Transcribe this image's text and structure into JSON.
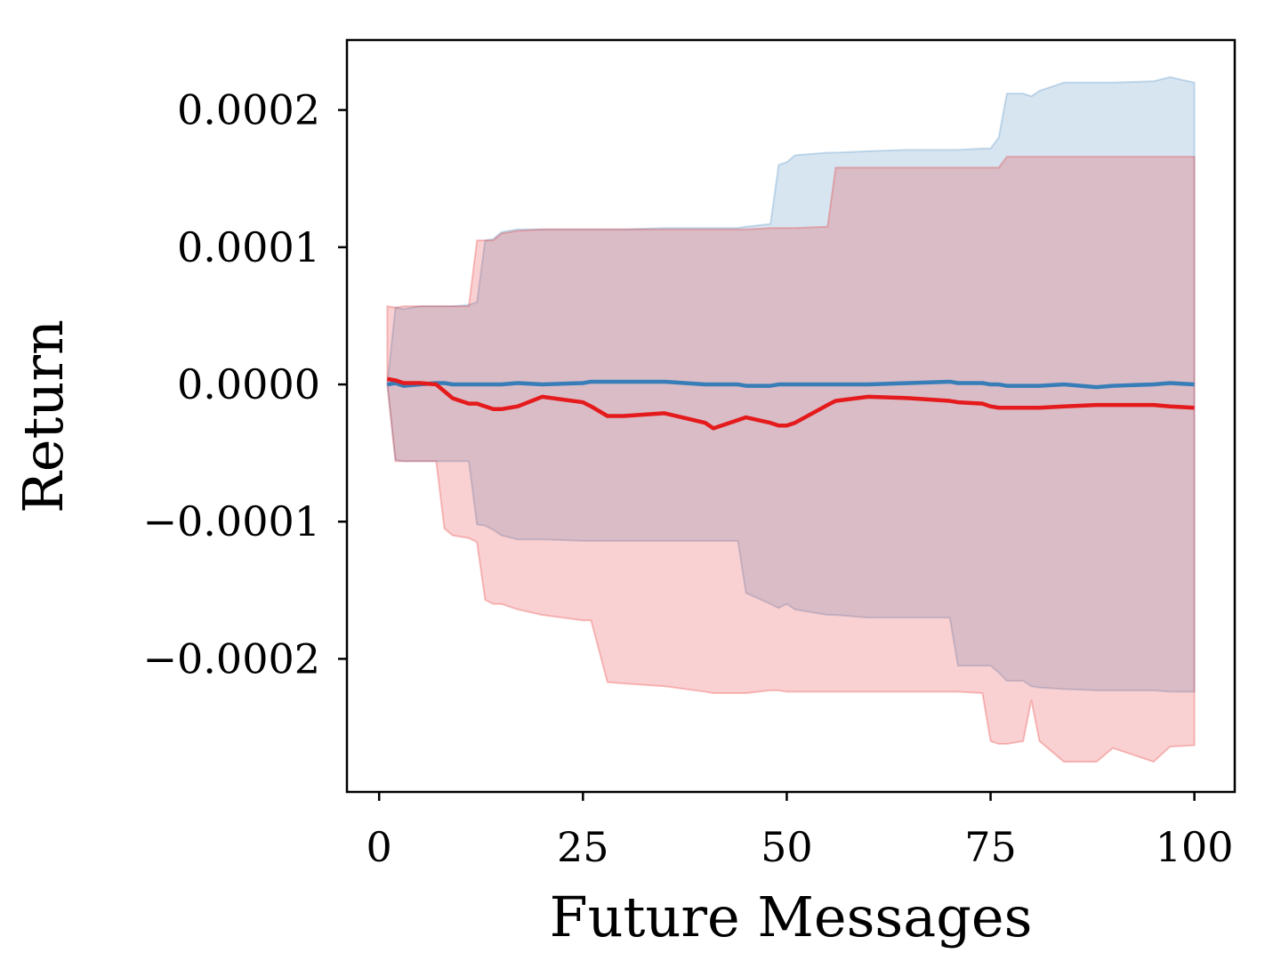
{
  "chart_data": {
    "type": "line",
    "xlabel": "Future Messages",
    "ylabel": "Return",
    "x": [
      1,
      2,
      3,
      5,
      7,
      8,
      9,
      11,
      12,
      13,
      14,
      15,
      17,
      20,
      25,
      26,
      28,
      30,
      35,
      40,
      41,
      44,
      45,
      48,
      49,
      50,
      51,
      55,
      56,
      60,
      65,
      70,
      71,
      74,
      75,
      76,
      77,
      79,
      80,
      81,
      84,
      88,
      90,
      95,
      97,
      100
    ],
    "xlim": [
      -3.95,
      104.95
    ],
    "xticks": [
      0,
      25,
      50,
      75,
      100
    ],
    "ylim": [
      -0.000297,
      0.000251
    ],
    "yticks": [
      {
        "value": -0.0002,
        "label": "−0.0002"
      },
      {
        "value": -0.0001,
        "label": "−0.0001"
      },
      {
        "value": 0,
        "label": "0.0000"
      },
      0.0001,
      0.0002
    ],
    "series": [
      {
        "color": "#377eb8",
        "values": [
          0,
          1e-06,
          -1e-06,
          0,
          1e-06,
          1e-06,
          0,
          0,
          0,
          0,
          0,
          0,
          1e-06,
          0,
          1e-06,
          2e-06,
          2e-06,
          2e-06,
          2e-06,
          0,
          0,
          0,
          -1e-06,
          -1e-06,
          0,
          0,
          0,
          0,
          0,
          0,
          1e-06,
          2e-06,
          1e-06,
          1e-06,
          0,
          0,
          -1e-06,
          -1e-06,
          -1e-06,
          -1e-06,
          0,
          -2e-06,
          -1e-06,
          0,
          1e-06,
          0
        ],
        "lower": [
          0,
          -5.5e-05,
          -5.6e-05,
          -5.6e-05,
          -5.6e-05,
          -5.6e-05,
          -5.6e-05,
          -5.6e-05,
          -0.000102,
          -0.000103,
          -0.000106,
          -0.00011,
          -0.000113,
          -0.000113,
          -0.000114,
          -0.000114,
          -0.000114,
          -0.000114,
          -0.000114,
          -0.000114,
          -0.000114,
          -0.000114,
          -0.000152,
          -0.00016,
          -0.000163,
          -0.00016,
          -0.000164,
          -0.000168,
          -0.000168,
          -0.00017,
          -0.00017,
          -0.00017,
          -0.000205,
          -0.000205,
          -0.000205,
          -0.00021,
          -0.000216,
          -0.000216,
          -0.00022,
          -0.000221,
          -0.000222,
          -0.000223,
          -0.000223,
          -0.000223,
          -0.000224,
          -0.000224
        ],
        "upper": [
          0,
          5.6e-05,
          5.5e-05,
          5.7e-05,
          5.7e-05,
          5.7e-05,
          5.7e-05,
          5.8e-05,
          6e-05,
          0.000105,
          0.000106,
          0.000111,
          0.000113,
          0.000113,
          0.000113,
          0.000113,
          0.000113,
          0.000113,
          0.000114,
          0.000114,
          0.000114,
          0.000114,
          0.000115,
          0.000117,
          0.00016,
          0.000162,
          0.000167,
          0.000169,
          0.000169,
          0.00017,
          0.000171,
          0.000171,
          0.000171,
          0.000172,
          0.000172,
          0.00018,
          0.000212,
          0.000212,
          0.00021,
          0.000214,
          0.00022,
          0.00022,
          0.00022,
          0.000221,
          0.000224,
          0.00022
        ]
      },
      {
        "color": "#e41a1c",
        "values": [
          4e-06,
          3e-06,
          1e-06,
          1e-06,
          0,
          -5e-06,
          -1e-05,
          -1.4e-05,
          -1.4e-05,
          -1.6e-05,
          -1.8e-05,
          -1.8e-05,
          -1.6e-05,
          -9e-06,
          -1.3e-05,
          -1.6e-05,
          -2.3e-05,
          -2.3e-05,
          -2.1e-05,
          -2.8e-05,
          -3.2e-05,
          -2.6e-05,
          -2.4e-05,
          -2.8e-05,
          -3e-05,
          -3e-05,
          -2.8e-05,
          -1.5e-05,
          -1.2e-05,
          -9e-06,
          -1e-05,
          -1.2e-05,
          -1.3e-05,
          -1.4e-05,
          -1.6e-05,
          -1.7e-05,
          -1.7e-05,
          -1.7e-05,
          -1.7e-05,
          -1.7e-05,
          -1.6e-05,
          -1.5e-05,
          -1.5e-05,
          -1.5e-05,
          -1.6e-05,
          -1.7e-05
        ],
        "lower": [
          0,
          -5.6e-05,
          -5.6e-05,
          -5.6e-05,
          -5.6e-05,
          -0.000105,
          -0.00011,
          -0.000112,
          -0.000115,
          -0.000157,
          -0.00016,
          -0.00016,
          -0.000164,
          -0.000168,
          -0.000172,
          -0.000172,
          -0.000217,
          -0.000218,
          -0.00022,
          -0.000224,
          -0.000225,
          -0.000225,
          -0.000225,
          -0.000223,
          -0.000223,
          -0.000224,
          -0.000224,
          -0.000224,
          -0.000224,
          -0.000224,
          -0.000224,
          -0.000224,
          -0.000224,
          -0.000225,
          -0.00026,
          -0.000262,
          -0.000262,
          -0.00026,
          -0.00023,
          -0.00026,
          -0.000275,
          -0.000275,
          -0.000265,
          -0.000275,
          -0.000264,
          -0.000263
        ],
        "upper": [
          5.7e-05,
          5.6e-05,
          5.7e-05,
          5.7e-05,
          5.7e-05,
          5.7e-05,
          5.7e-05,
          5.7e-05,
          0.000105,
          0.000105,
          0.000105,
          0.00011,
          0.000112,
          0.000113,
          0.000113,
          0.000113,
          0.000113,
          0.000113,
          0.000113,
          0.000113,
          0.000113,
          0.000113,
          0.000113,
          0.000114,
          0.000114,
          0.000114,
          0.000114,
          0.000115,
          0.000158,
          0.000158,
          0.000158,
          0.000158,
          0.000158,
          0.000158,
          0.000158,
          0.000158,
          0.000166,
          0.000166,
          0.000166,
          0.000166,
          0.000166,
          0.000166,
          0.000166,
          0.000166,
          0.000166,
          0.000166
        ]
      }
    ]
  }
}
